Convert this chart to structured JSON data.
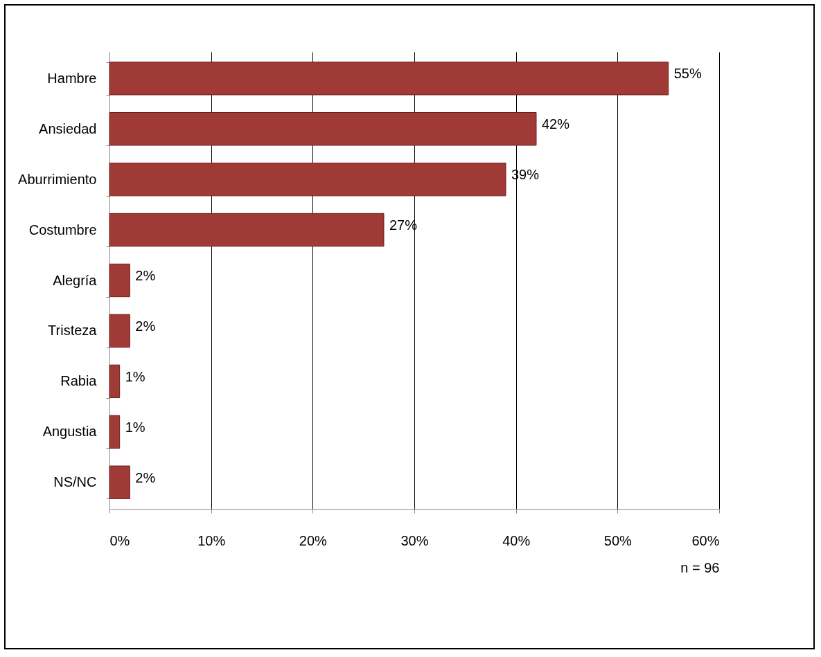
{
  "chart_data": {
    "type": "bar",
    "orientation": "horizontal",
    "categories": [
      "Hambre",
      "Ansiedad",
      "Aburrimiento",
      "Costumbre",
      "Alegría",
      "Tristeza",
      "Rabia",
      "Angustia",
      "NS/NC"
    ],
    "values": [
      55,
      42,
      39,
      27,
      2,
      2,
      1,
      1,
      2
    ],
    "value_labels": [
      "55%",
      "42%",
      "39%",
      "27%",
      "2%",
      "2%",
      "1%",
      "1%",
      "2%"
    ],
    "color": "#a03a36",
    "xlim": [
      0,
      60
    ],
    "xticks": [
      {
        "value": 0,
        "label": "0%"
      },
      {
        "value": 10,
        "label": "10%"
      },
      {
        "value": 20,
        "label": "20%"
      },
      {
        "value": 30,
        "label": "30%"
      },
      {
        "value": 40,
        "label": "40%"
      },
      {
        "value": 50,
        "label": "50%"
      },
      {
        "value": 60,
        "label": "60%"
      }
    ],
    "grid": "x",
    "annotations": [
      "n = 96"
    ]
  }
}
